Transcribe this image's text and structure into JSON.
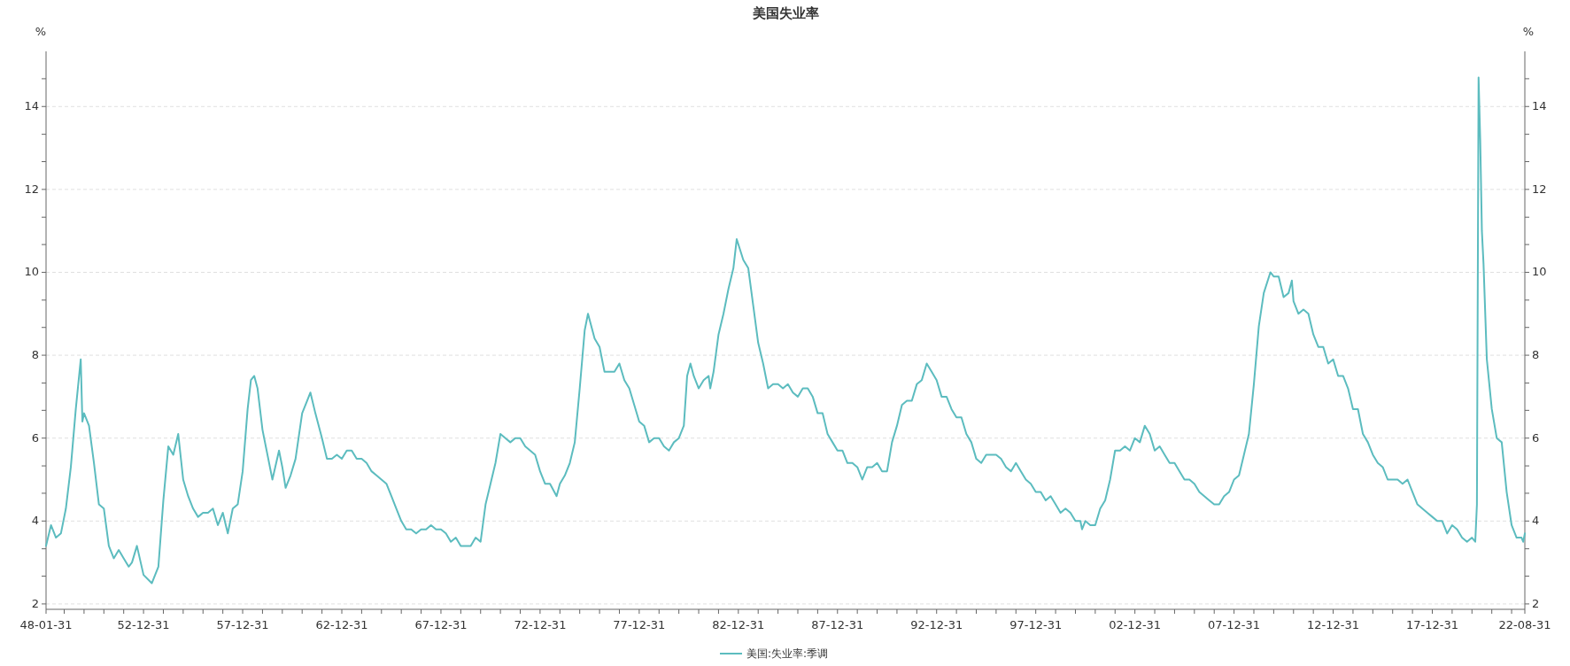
{
  "chart_data": {
    "type": "line",
    "title": "美国失业率",
    "ylabel": "%",
    "y2label": "%",
    "xlim": [
      "1948-01",
      "2022-08"
    ],
    "xticks": [
      {
        "value": "1948-01",
        "label": "48-01-31"
      },
      {
        "value": "1948-12",
        "label": null
      },
      {
        "value": "1949-12",
        "label": null
      },
      {
        "value": "1950-12",
        "label": null
      },
      {
        "value": "1951-12",
        "label": null
      },
      {
        "value": "1952-12",
        "label": "52-12-31"
      },
      {
        "value": "1953-12",
        "label": null
      },
      {
        "value": "1954-12",
        "label": null
      },
      {
        "value": "1955-12",
        "label": null
      },
      {
        "value": "1956-12",
        "label": null
      },
      {
        "value": "1957-12",
        "label": "57-12-31"
      },
      {
        "value": "1958-12",
        "label": null
      },
      {
        "value": "1959-12",
        "label": null
      },
      {
        "value": "1960-12",
        "label": null
      },
      {
        "value": "1961-12",
        "label": null
      },
      {
        "value": "1962-12",
        "label": "62-12-31"
      },
      {
        "value": "1963-12",
        "label": null
      },
      {
        "value": "1964-12",
        "label": null
      },
      {
        "value": "1965-12",
        "label": null
      },
      {
        "value": "1966-12",
        "label": null
      },
      {
        "value": "1967-12",
        "label": "67-12-31"
      },
      {
        "value": "1968-12",
        "label": null
      },
      {
        "value": "1969-12",
        "label": null
      },
      {
        "value": "1970-12",
        "label": null
      },
      {
        "value": "1971-12",
        "label": null
      },
      {
        "value": "1972-12",
        "label": "72-12-31"
      },
      {
        "value": "1973-12",
        "label": null
      },
      {
        "value": "1974-12",
        "label": null
      },
      {
        "value": "1975-12",
        "label": null
      },
      {
        "value": "1976-12",
        "label": null
      },
      {
        "value": "1977-12",
        "label": "77-12-31"
      },
      {
        "value": "1978-12",
        "label": null
      },
      {
        "value": "1979-12",
        "label": null
      },
      {
        "value": "1980-12",
        "label": null
      },
      {
        "value": "1981-12",
        "label": null
      },
      {
        "value": "1982-12",
        "label": "82-12-31"
      },
      {
        "value": "1983-12",
        "label": null
      },
      {
        "value": "1984-12",
        "label": null
      },
      {
        "value": "1985-12",
        "label": null
      },
      {
        "value": "1986-12",
        "label": null
      },
      {
        "value": "1987-12",
        "label": "87-12-31"
      },
      {
        "value": "1988-12",
        "label": null
      },
      {
        "value": "1989-12",
        "label": null
      },
      {
        "value": "1990-12",
        "label": null
      },
      {
        "value": "1991-12",
        "label": null
      },
      {
        "value": "1992-12",
        "label": "92-12-31"
      },
      {
        "value": "1993-12",
        "label": null
      },
      {
        "value": "1994-12",
        "label": null
      },
      {
        "value": "1995-12",
        "label": null
      },
      {
        "value": "1996-12",
        "label": null
      },
      {
        "value": "1997-12",
        "label": "97-12-31"
      },
      {
        "value": "1998-12",
        "label": null
      },
      {
        "value": "1999-12",
        "label": null
      },
      {
        "value": "2000-12",
        "label": null
      },
      {
        "value": "2001-12",
        "label": null
      },
      {
        "value": "2002-12",
        "label": "02-12-31"
      },
      {
        "value": "2003-12",
        "label": null
      },
      {
        "value": "2004-12",
        "label": null
      },
      {
        "value": "2005-12",
        "label": null
      },
      {
        "value": "2006-12",
        "label": null
      },
      {
        "value": "2007-12",
        "label": "07-12-31"
      },
      {
        "value": "2008-12",
        "label": null
      },
      {
        "value": "2009-12",
        "label": null
      },
      {
        "value": "2010-12",
        "label": null
      },
      {
        "value": "2011-12",
        "label": null
      },
      {
        "value": "2012-12",
        "label": "12-12-31"
      },
      {
        "value": "2013-12",
        "label": null
      },
      {
        "value": "2014-12",
        "label": null
      },
      {
        "value": "2015-12",
        "label": null
      },
      {
        "value": "2016-12",
        "label": null
      },
      {
        "value": "2017-12",
        "label": "17-12-31"
      },
      {
        "value": "2018-12",
        "label": null
      },
      {
        "value": "2019-12",
        "label": null
      },
      {
        "value": "2020-12",
        "label": null
      },
      {
        "value": "2021-12",
        "label": null
      },
      {
        "value": "2022-08",
        "label": "22-08-31"
      }
    ],
    "ylim": [
      1.87,
      15.33
    ],
    "yticks": [
      2,
      {
        "value": 2.67,
        "label": null
      },
      {
        "value": 3.33,
        "label": null
      },
      4,
      {
        "value": 4.67,
        "label": null
      },
      {
        "value": 5.33,
        "label": null
      },
      6,
      {
        "value": 6.67,
        "label": null
      },
      {
        "value": 7.33,
        "label": null
      },
      8,
      {
        "value": 8.67,
        "label": null
      },
      {
        "value": 9.33,
        "label": null
      },
      10,
      {
        "value": 10.67,
        "label": null
      },
      {
        "value": 11.33,
        "label": null
      },
      12,
      {
        "value": 12.67,
        "label": null
      },
      {
        "value": 13.33,
        "label": null
      },
      14,
      {
        "value": 14.67,
        "label": null
      }
    ],
    "y2lim": [
      1.87,
      15.33
    ],
    "y2ticks": [
      2,
      {
        "value": 2.67,
        "label": null
      },
      {
        "value": 3.33,
        "label": null
      },
      4,
      {
        "value": 4.67,
        "label": null
      },
      {
        "value": 5.33,
        "label": null
      },
      6,
      {
        "value": 6.67,
        "label": null
      },
      {
        "value": 7.33,
        "label": null
      },
      8,
      {
        "value": 8.67,
        "label": null
      },
      {
        "value": 9.33,
        "label": null
      },
      10,
      {
        "value": 10.67,
        "label": null
      },
      {
        "value": 11.33,
        "label": null
      },
      12,
      {
        "value": 12.67,
        "label": null
      },
      {
        "value": 13.33,
        "label": null
      },
      14,
      {
        "value": 14.67,
        "label": null
      }
    ],
    "grid": "y",
    "legend": "bottom",
    "marker": "none",
    "line_style": "solid",
    "series": [
      {
        "name": "美国:失业率:季调",
        "color": "#5cbcbf",
        "x": [
          "1948-01",
          "1948-04",
          "1948-07",
          "1948-10",
          "1949-01",
          "1949-04",
          "1949-07",
          "1949-10",
          "1949-11",
          "1949-12",
          "1950-03",
          "1950-06",
          "1950-09",
          "1950-12",
          "1951-03",
          "1951-06",
          "1951-09",
          "1951-12",
          "1952-03",
          "1952-05",
          "1952-08",
          "1952-12",
          "1953-05",
          "1953-09",
          "1953-12",
          "1954-03",
          "1954-06",
          "1954-09",
          "1954-12",
          "1955-03",
          "1955-06",
          "1955-09",
          "1955-12",
          "1956-03",
          "1956-06",
          "1956-09",
          "1956-12",
          "1957-03",
          "1957-06",
          "1957-09",
          "1957-12",
          "1958-03",
          "1958-05",
          "1958-07",
          "1958-09",
          "1958-12",
          "1959-03",
          "1959-06",
          "1959-10",
          "1959-12",
          "1960-02",
          "1960-05",
          "1960-08",
          "1960-12",
          "1961-03",
          "1961-05",
          "1961-08",
          "1961-12",
          "1962-03",
          "1962-06",
          "1962-09",
          "1962-12",
          "1963-03",
          "1963-06",
          "1963-09",
          "1963-12",
          "1964-03",
          "1964-06",
          "1964-09",
          "1964-12",
          "1965-03",
          "1965-06",
          "1965-09",
          "1965-12",
          "1966-03",
          "1966-06",
          "1966-09",
          "1966-12",
          "1967-03",
          "1967-06",
          "1967-09",
          "1967-12",
          "1968-03",
          "1968-06",
          "1968-09",
          "1968-12",
          "1969-06",
          "1969-09",
          "1969-12",
          "1970-03",
          "1970-06",
          "1970-09",
          "1970-12",
          "1971-03",
          "1971-06",
          "1971-09",
          "1971-12",
          "1972-03",
          "1972-06",
          "1972-09",
          "1972-12",
          "1973-03",
          "1973-06",
          "1973-10",
          "1973-12",
          "1974-03",
          "1974-06",
          "1974-09",
          "1974-12",
          "1975-03",
          "1975-05",
          "1975-09",
          "1975-12",
          "1976-03",
          "1976-06",
          "1976-09",
          "1976-12",
          "1977-03",
          "1977-06",
          "1977-09",
          "1977-12",
          "1978-03",
          "1978-06",
          "1978-09",
          "1978-12",
          "1979-03",
          "1979-06",
          "1979-09",
          "1979-12",
          "1980-03",
          "1980-05",
          "1980-07",
          "1980-09",
          "1980-12",
          "1981-03",
          "1981-06",
          "1981-07",
          "1981-09",
          "1981-12",
          "1982-03",
          "1982-06",
          "1982-09",
          "1982-11",
          "1983-03",
          "1983-06",
          "1983-09",
          "1983-12",
          "1984-03",
          "1984-06",
          "1984-09",
          "1984-12",
          "1985-03",
          "1985-06",
          "1985-09",
          "1985-12",
          "1986-03",
          "1986-06",
          "1986-09",
          "1986-12",
          "1987-03",
          "1987-06",
          "1987-09",
          "1987-12",
          "1988-03",
          "1988-06",
          "1988-09",
          "1988-12",
          "1989-03",
          "1989-06",
          "1989-09",
          "1989-12",
          "1990-03",
          "1990-06",
          "1990-09",
          "1990-12",
          "1991-03",
          "1991-06",
          "1991-09",
          "1991-12",
          "1992-03",
          "1992-06",
          "1992-09",
          "1992-12",
          "1993-03",
          "1993-06",
          "1993-09",
          "1993-12",
          "1994-03",
          "1994-06",
          "1994-09",
          "1994-12",
          "1995-03",
          "1995-06",
          "1995-09",
          "1995-12",
          "1996-03",
          "1996-06",
          "1996-09",
          "1996-12",
          "1997-03",
          "1997-06",
          "1997-09",
          "1997-12",
          "1998-03",
          "1998-06",
          "1998-09",
          "1998-12",
          "1999-03",
          "1999-06",
          "1999-09",
          "1999-12",
          "2000-03",
          "2000-04",
          "2000-06",
          "2000-09",
          "2000-12",
          "2001-03",
          "2001-06",
          "2001-09",
          "2001-12",
          "2002-03",
          "2002-06",
          "2002-09",
          "2002-12",
          "2003-03",
          "2003-06",
          "2003-09",
          "2003-12",
          "2004-03",
          "2004-06",
          "2004-09",
          "2004-12",
          "2005-03",
          "2005-06",
          "2005-09",
          "2005-12",
          "2006-03",
          "2006-06",
          "2006-09",
          "2006-12",
          "2007-03",
          "2007-06",
          "2007-09",
          "2007-12",
          "2008-03",
          "2008-06",
          "2008-09",
          "2008-12",
          "2009-03",
          "2009-06",
          "2009-10",
          "2009-12",
          "2010-03",
          "2010-06",
          "2010-09",
          "2010-11",
          "2010-12",
          "2011-03",
          "2011-06",
          "2011-09",
          "2011-12",
          "2012-03",
          "2012-06",
          "2012-09",
          "2012-12",
          "2013-03",
          "2013-06",
          "2013-09",
          "2013-12",
          "2014-03",
          "2014-06",
          "2014-09",
          "2014-12",
          "2015-03",
          "2015-06",
          "2015-09",
          "2015-12",
          "2016-03",
          "2016-06",
          "2016-09",
          "2016-12",
          "2017-03",
          "2017-06",
          "2017-09",
          "2017-12",
          "2018-03",
          "2018-06",
          "2018-09",
          "2018-12",
          "2019-03",
          "2019-06",
          "2019-09",
          "2019-12",
          "2020-02",
          "2020-03",
          "2020-04",
          "2020-05",
          "2020-06",
          "2020-07",
          "2020-09",
          "2020-12",
          "2021-03",
          "2021-06",
          "2021-09",
          "2021-12",
          "2022-03",
          "2022-06",
          "2022-07",
          "2022-08"
        ],
        "values": [
          3.4,
          3.9,
          3.6,
          3.7,
          4.3,
          5.3,
          6.7,
          7.9,
          6.4,
          6.6,
          6.3,
          5.4,
          4.4,
          4.3,
          3.4,
          3.1,
          3.3,
          3.1,
          2.9,
          3.0,
          3.4,
          2.7,
          2.5,
          2.9,
          4.5,
          5.8,
          5.6,
          6.1,
          5.0,
          4.6,
          4.3,
          4.1,
          4.2,
          4.2,
          4.3,
          3.9,
          4.2,
          3.7,
          4.3,
          4.4,
          5.2,
          6.7,
          7.4,
          7.5,
          7.2,
          6.2,
          5.6,
          5.0,
          5.7,
          5.3,
          4.8,
          5.1,
          5.5,
          6.6,
          6.9,
          7.1,
          6.6,
          6.0,
          5.5,
          5.5,
          5.6,
          5.5,
          5.7,
          5.7,
          5.5,
          5.5,
          5.4,
          5.2,
          5.1,
          5.0,
          4.9,
          4.6,
          4.3,
          4.0,
          3.8,
          3.8,
          3.7,
          3.8,
          3.8,
          3.9,
          3.8,
          3.8,
          3.7,
          3.5,
          3.6,
          3.4,
          3.4,
          3.6,
          3.5,
          4.4,
          4.9,
          5.4,
          6.1,
          6.0,
          5.9,
          6.0,
          6.0,
          5.8,
          5.7,
          5.6,
          5.2,
          4.9,
          4.9,
          4.6,
          4.9,
          5.1,
          5.4,
          5.9,
          7.2,
          8.6,
          9.0,
          8.4,
          8.2,
          7.6,
          7.6,
          7.6,
          7.8,
          7.4,
          7.2,
          6.8,
          6.4,
          6.3,
          5.9,
          6.0,
          6.0,
          5.8,
          5.7,
          5.9,
          6.0,
          6.3,
          7.5,
          7.8,
          7.5,
          7.2,
          7.4,
          7.5,
          7.2,
          7.6,
          8.5,
          9.0,
          9.6,
          10.1,
          10.8,
          10.3,
          10.1,
          9.2,
          8.3,
          7.8,
          7.2,
          7.3,
          7.3,
          7.2,
          7.3,
          7.1,
          7.0,
          7.2,
          7.2,
          7.0,
          6.6,
          6.6,
          6.1,
          5.9,
          5.7,
          5.7,
          5.4,
          5.4,
          5.3,
          5.0,
          5.3,
          5.3,
          5.4,
          5.2,
          5.2,
          5.9,
          6.3,
          6.8,
          6.9,
          6.9,
          7.3,
          7.4,
          7.8,
          7.6,
          7.4,
          7.0,
          7.0,
          6.7,
          6.5,
          6.5,
          6.1,
          5.9,
          5.5,
          5.4,
          5.6,
          5.6,
          5.6,
          5.5,
          5.3,
          5.2,
          5.4,
          5.2,
          5.0,
          4.9,
          4.7,
          4.7,
          4.5,
          4.6,
          4.4,
          4.2,
          4.3,
          4.2,
          4.0,
          4.0,
          3.8,
          4.0,
          3.9,
          3.9,
          4.3,
          4.5,
          5.0,
          5.7,
          5.7,
          5.8,
          5.7,
          6.0,
          5.9,
          6.3,
          6.1,
          5.7,
          5.8,
          5.6,
          5.4,
          5.4,
          5.2,
          5.0,
          5.0,
          4.9,
          4.7,
          4.6,
          4.5,
          4.4,
          4.4,
          4.6,
          4.7,
          5.0,
          5.1,
          5.6,
          6.1,
          7.3,
          8.7,
          9.5,
          10.0,
          9.9,
          9.9,
          9.4,
          9.5,
          9.8,
          9.3,
          9.0,
          9.1,
          9.0,
          8.5,
          8.2,
          8.2,
          7.8,
          7.9,
          7.5,
          7.5,
          7.2,
          6.7,
          6.7,
          6.1,
          5.9,
          5.6,
          5.4,
          5.3,
          5.0,
          5.0,
          5.0,
          4.9,
          5.0,
          4.7,
          4.4,
          4.3,
          4.2,
          4.1,
          4.0,
          4.0,
          3.7,
          3.9,
          3.8,
          3.6,
          3.5,
          3.6,
          3.5,
          4.4,
          14.7,
          13.2,
          11.0,
          10.2,
          7.9,
          6.7,
          6.0,
          5.9,
          4.7,
          3.9,
          3.6,
          3.6,
          3.5,
          3.7
        ]
      }
    ]
  }
}
